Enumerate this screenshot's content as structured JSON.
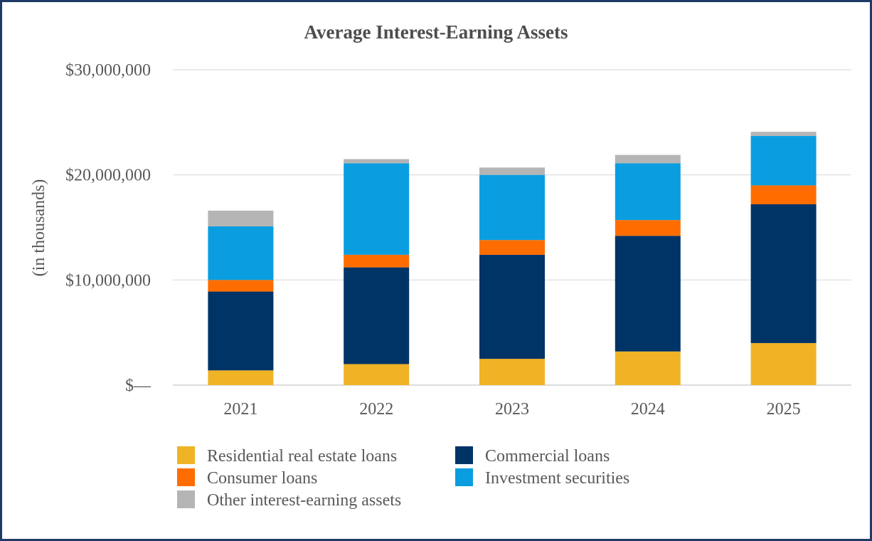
{
  "chart_data": {
    "type": "bar",
    "stacked": true,
    "title": "Average Interest-Earning Assets",
    "xlabel": "",
    "ylabel": "(in thousands)",
    "ylim": [
      0,
      30000000
    ],
    "yticks": [
      0,
      10000000,
      20000000,
      30000000
    ],
    "ytick_labels": [
      "$—",
      "$10,000,000",
      "$20,000,000",
      "$30,000,000"
    ],
    "grid": true,
    "legend_position": "bottom",
    "categories": [
      "2021",
      "2022",
      "2023",
      "2024",
      "2025"
    ],
    "series": [
      {
        "name": "Residential real estate loans",
        "color": "#efb325",
        "values": [
          1400000,
          2000000,
          2500000,
          3200000,
          4000000
        ]
      },
      {
        "name": "Commercial loans",
        "color": "#003366",
        "values": [
          7500000,
          9200000,
          9900000,
          11000000,
          13200000
        ]
      },
      {
        "name": "Consumer loans",
        "color": "#ff6d00",
        "values": [
          1100000,
          1200000,
          1400000,
          1500000,
          1800000
        ]
      },
      {
        "name": "Investment securities",
        "color": "#0a9ee0",
        "values": [
          5100000,
          8700000,
          6200000,
          5400000,
          4700000
        ]
      },
      {
        "name": "Other interest-earning assets",
        "color": "#b5b5b5",
        "values": [
          1500000,
          400000,
          700000,
          800000,
          400000
        ]
      }
    ]
  }
}
